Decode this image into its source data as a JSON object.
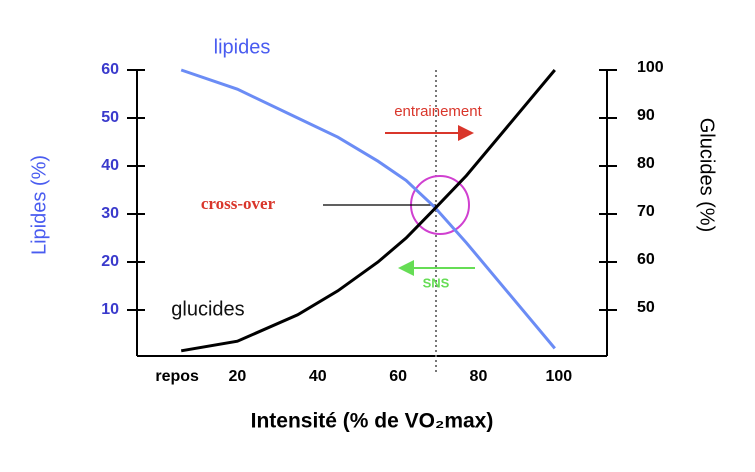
{
  "chart_data": {
    "type": "line",
    "x_label": "Intensité (% de VO₂max)",
    "y_label": "Lipides (%)",
    "y2_label": "Glucides (%)",
    "x": [
      6,
      20,
      35,
      45,
      55,
      62,
      69,
      77,
      87,
      99
    ],
    "series": [
      {
        "name": "lipides",
        "color": "#6b8cf5",
        "values": [
          60,
          56,
          50,
          46,
          41,
          37,
          31.5,
          24,
          14,
          2
        ]
      },
      {
        "name": "glucides",
        "color": "#000000",
        "axis": "y2",
        "values": [
          41.5,
          43.5,
          49,
          54,
          60,
          65,
          71,
          78,
          88,
          100
        ]
      }
    ],
    "xlim": [
      -5,
      112
    ],
    "xticks": [
      {
        "value": 5,
        "label": "repos"
      },
      20,
      40,
      60,
      80,
      100
    ],
    "ylim": [
      0,
      60
    ],
    "yticks": [
      10,
      20,
      30,
      40,
      50,
      60
    ],
    "y2lim": [
      40,
      100
    ],
    "y2ticks": [
      50,
      60,
      70,
      80,
      90,
      100
    ],
    "annotations": [
      "entrainement",
      "cross-over",
      "SNS"
    ]
  }
}
